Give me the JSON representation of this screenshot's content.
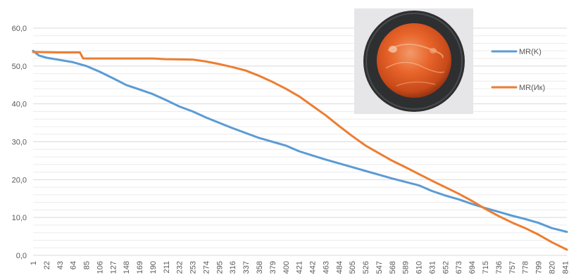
{
  "chart_data": {
    "type": "line",
    "title": "",
    "xlabel": "",
    "ylabel": "",
    "ylim": [
      0,
      60
    ],
    "y_ticks": [
      "0,0",
      "10,0",
      "20,0",
      "30,0",
      "40,0",
      "50,0",
      "60,0"
    ],
    "x_ticks": [
      "1",
      "22",
      "43",
      "64",
      "85",
      "106",
      "127",
      "148",
      "169",
      "190",
      "211",
      "232",
      "253",
      "274",
      "295",
      "316",
      "337",
      "358",
      "379",
      "400",
      "421",
      "442",
      "463",
      "484",
      "505",
      "526",
      "547",
      "568",
      "589",
      "610",
      "631",
      "652",
      "673",
      "694",
      "715",
      "736",
      "757",
      "778",
      "799",
      "820",
      "841"
    ],
    "x_range": [
      1,
      844
    ],
    "grid": "horizontal major and minor",
    "legend_position": "right",
    "series": [
      {
        "name": "MR(K)",
        "color": "#5B9BD5",
        "points": [
          [
            1,
            54.0
          ],
          [
            10,
            52.8
          ],
          [
            22,
            52.2
          ],
          [
            43,
            51.6
          ],
          [
            64,
            51.0
          ],
          [
            85,
            50.0
          ],
          [
            106,
            48.5
          ],
          [
            127,
            46.8
          ],
          [
            148,
            45.0
          ],
          [
            169,
            43.8
          ],
          [
            190,
            42.6
          ],
          [
            211,
            41.0
          ],
          [
            232,
            39.3
          ],
          [
            253,
            38.0
          ],
          [
            274,
            36.4
          ],
          [
            295,
            35.0
          ],
          [
            316,
            33.6
          ],
          [
            337,
            32.3
          ],
          [
            358,
            31.0
          ],
          [
            379,
            30.0
          ],
          [
            400,
            29.0
          ],
          [
            421,
            27.5
          ],
          [
            442,
            26.4
          ],
          [
            463,
            25.3
          ],
          [
            484,
            24.3
          ],
          [
            505,
            23.3
          ],
          [
            526,
            22.3
          ],
          [
            547,
            21.3
          ],
          [
            568,
            20.3
          ],
          [
            589,
            19.4
          ],
          [
            610,
            18.5
          ],
          [
            631,
            17.0
          ],
          [
            652,
            15.8
          ],
          [
            673,
            14.8
          ],
          [
            694,
            13.6
          ],
          [
            715,
            12.5
          ],
          [
            736,
            11.5
          ],
          [
            757,
            10.5
          ],
          [
            778,
            9.6
          ],
          [
            799,
            8.6
          ],
          [
            820,
            7.2
          ],
          [
            844,
            6.2
          ]
        ]
      },
      {
        "name": "MR(Ик)",
        "color": "#ED7D31",
        "points": [
          [
            1,
            53.7
          ],
          [
            40,
            53.6
          ],
          [
            64,
            53.6
          ],
          [
            75,
            53.6
          ],
          [
            80,
            52.0
          ],
          [
            106,
            52.0
          ],
          [
            148,
            52.0
          ],
          [
            190,
            52.0
          ],
          [
            211,
            51.8
          ],
          [
            253,
            51.7
          ],
          [
            274,
            51.2
          ],
          [
            295,
            50.5
          ],
          [
            316,
            49.7
          ],
          [
            337,
            48.8
          ],
          [
            358,
            47.4
          ],
          [
            379,
            45.8
          ],
          [
            400,
            44.0
          ],
          [
            421,
            42.0
          ],
          [
            442,
            39.5
          ],
          [
            463,
            37.0
          ],
          [
            484,
            34.2
          ],
          [
            505,
            31.5
          ],
          [
            526,
            29.0
          ],
          [
            547,
            27.0
          ],
          [
            568,
            25.0
          ],
          [
            589,
            23.3
          ],
          [
            610,
            21.5
          ],
          [
            631,
            19.7
          ],
          [
            652,
            18.0
          ],
          [
            673,
            16.3
          ],
          [
            694,
            14.4
          ],
          [
            715,
            12.3
          ],
          [
            736,
            10.4
          ],
          [
            757,
            8.7
          ],
          [
            778,
            7.2
          ],
          [
            799,
            5.5
          ],
          [
            820,
            3.5
          ],
          [
            844,
            1.5
          ]
        ]
      }
    ]
  }
}
